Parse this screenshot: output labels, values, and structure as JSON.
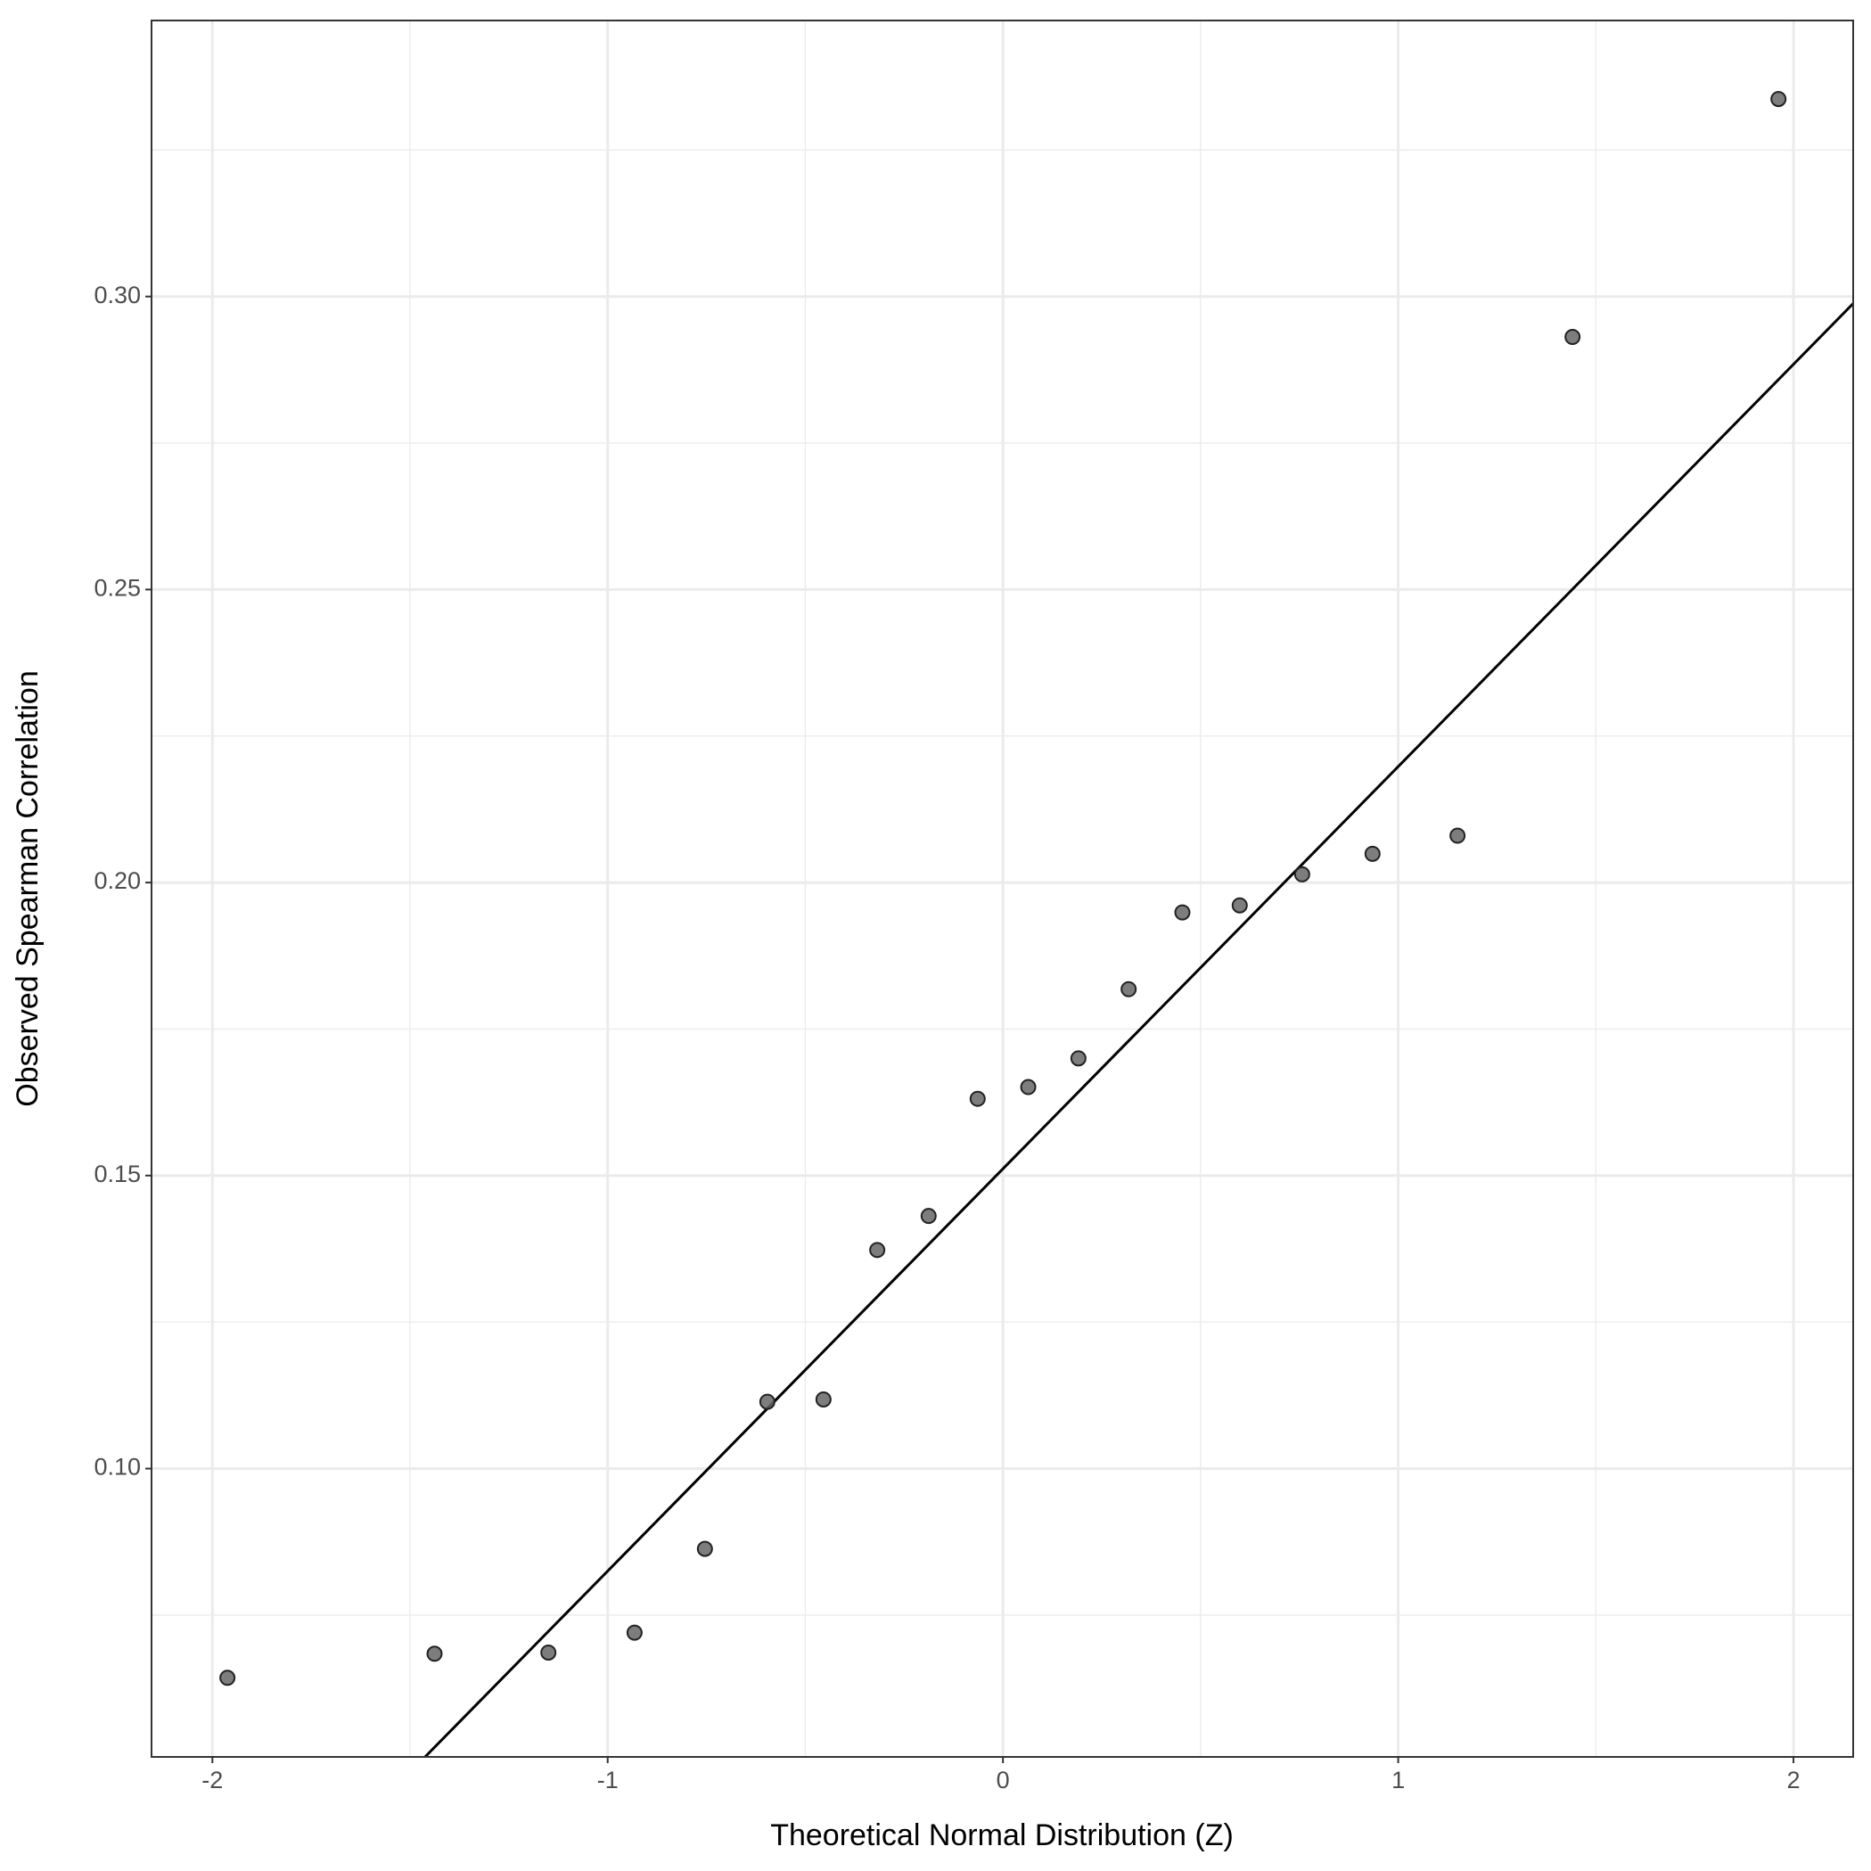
{
  "chart_data": {
    "type": "scatter",
    "x_label": "Theoretical Normal Distribution (Z)",
    "y_label": "Observed Spearman Correlation",
    "x": [
      -1.962,
      -1.438,
      -1.15,
      -0.932,
      -0.754,
      -0.596,
      -0.454,
      -0.318,
      -0.188,
      -0.064,
      0.064,
      0.191,
      0.318,
      0.454,
      0.599,
      0.757,
      0.935,
      1.15,
      1.441,
      1.962
    ],
    "values": [
      0.0643,
      0.0684,
      0.0686,
      0.072,
      0.0863,
      0.1114,
      0.1118,
      0.1373,
      0.1431,
      0.1631,
      0.1651,
      0.17,
      0.1818,
      0.1949,
      0.1961,
      0.2014,
      0.2049,
      0.208,
      0.2931,
      0.3337
    ],
    "color": "#666666",
    "reference_line": {
      "x": [
        -1.462,
        2.151
      ],
      "y": [
        0.0508,
        0.2988
      ],
      "color": "#000000"
    },
    "xlim": [
      -2.154,
      2.151
    ],
    "ylim": [
      0.0508,
      0.3471
    ],
    "xticks": [
      -2,
      -1,
      0,
      1,
      2
    ],
    "yticks": [
      {
        "value": 0.1,
        "label": "0.10"
      },
      {
        "value": 0.15,
        "label": "0.15"
      },
      {
        "value": 0.2,
        "label": "0.20"
      },
      {
        "value": 0.25,
        "label": "0.25"
      },
      {
        "value": 0.3,
        "label": "0.30"
      }
    ],
    "minor_xticks": [
      -1.5,
      -0.5,
      0.5,
      1.5
    ],
    "minor_yticks": [
      0.075,
      0.125,
      0.175,
      0.225,
      0.275,
      0.325
    ],
    "grid": true
  }
}
